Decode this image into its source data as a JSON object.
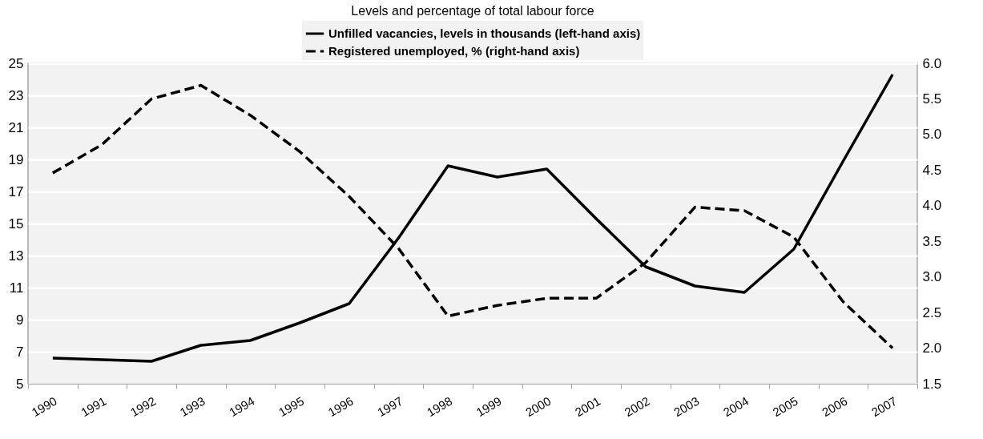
{
  "chart_data": {
    "type": "line",
    "title": "Levels and percentage of total labour force",
    "categories": [
      "1990",
      "1991",
      "1992",
      "1993",
      "1994",
      "1995",
      "1996",
      "1997",
      "1998",
      "1999",
      "2000",
      "2001",
      "2002",
      "2003",
      "2004",
      "2005",
      "2006",
      "2007"
    ],
    "series": [
      {
        "name": "Unfilled vacancies, levels in thousands (left-hand axis)",
        "color": "#000000",
        "line_style": "solid",
        "values": [
          6.6,
          6.5,
          6.4,
          7.4,
          7.7,
          8.8,
          10.0,
          14.1,
          18.6,
          17.9,
          18.4,
          15.3,
          12.3,
          11.1,
          10.7,
          13.4,
          18.9,
          24.3
        ]
      },
      {
        "name": "Registered unemployed, % (right-hand axis)",
        "color": "#000000",
        "line_style": "dashed",
        "axis": "y2",
        "values": [
          4.46,
          4.86,
          5.5,
          5.69,
          5.27,
          4.76,
          4.13,
          3.4,
          2.45,
          2.6,
          2.7,
          2.7,
          3.2,
          3.98,
          3.93,
          3.56,
          2.65,
          2.0
        ]
      }
    ],
    "ylim": [
      5,
      25
    ],
    "yticks": [
      5,
      7,
      9,
      11,
      13,
      15,
      17,
      19,
      21,
      23,
      25
    ],
    "y2lim": [
      1.5,
      6.0
    ],
    "y2ticks": [
      {
        "value": 1.5,
        "label": "1.5"
      },
      {
        "value": 2,
        "label": "2.0"
      },
      {
        "value": 2.5,
        "label": "2.5"
      },
      {
        "value": 3,
        "label": "3.0"
      },
      {
        "value": 3.5,
        "label": "3.5"
      },
      {
        "value": 4,
        "label": "4.0"
      },
      {
        "value": 4.5,
        "label": "4.5"
      },
      {
        "value": 5,
        "label": "5.0"
      },
      {
        "value": 5.5,
        "label": "5.5"
      },
      {
        "value": 6,
        "label": "6.0"
      }
    ],
    "grid": "y",
    "legend": "top",
    "marker": "none"
  }
}
